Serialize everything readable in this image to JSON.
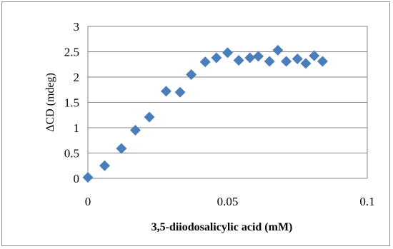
{
  "chart_data": {
    "type": "scatter",
    "title": "",
    "xlabel": "3,5-diiodosalicylic acid (mM)",
    "ylabel": "ΔCD (mdeg)",
    "xlim": [
      0,
      0.1
    ],
    "ylim": [
      0,
      3
    ],
    "x_ticks": [
      "0",
      "0.05",
      "0.1"
    ],
    "y_ticks": [
      "0",
      "0.5",
      "1",
      "1.5",
      "2",
      "2.5",
      "3"
    ],
    "grid": "horizontal",
    "legend": "none",
    "marker": "diamond",
    "marker_color": "#4a7ebb",
    "points": [
      {
        "x": 0.0,
        "y": 0.02
      },
      {
        "x": 0.006,
        "y": 0.25
      },
      {
        "x": 0.012,
        "y": 0.59
      },
      {
        "x": 0.017,
        "y": 0.95
      },
      {
        "x": 0.022,
        "y": 1.21
      },
      {
        "x": 0.028,
        "y": 1.72
      },
      {
        "x": 0.033,
        "y": 1.7
      },
      {
        "x": 0.037,
        "y": 2.05
      },
      {
        "x": 0.042,
        "y": 2.3
      },
      {
        "x": 0.046,
        "y": 2.38
      },
      {
        "x": 0.05,
        "y": 2.48
      },
      {
        "x": 0.054,
        "y": 2.33
      },
      {
        "x": 0.058,
        "y": 2.38
      },
      {
        "x": 0.061,
        "y": 2.41
      },
      {
        "x": 0.065,
        "y": 2.31
      },
      {
        "x": 0.068,
        "y": 2.53
      },
      {
        "x": 0.071,
        "y": 2.31
      },
      {
        "x": 0.075,
        "y": 2.36
      },
      {
        "x": 0.078,
        "y": 2.27
      },
      {
        "x": 0.081,
        "y": 2.42
      },
      {
        "x": 0.084,
        "y": 2.31
      }
    ]
  }
}
